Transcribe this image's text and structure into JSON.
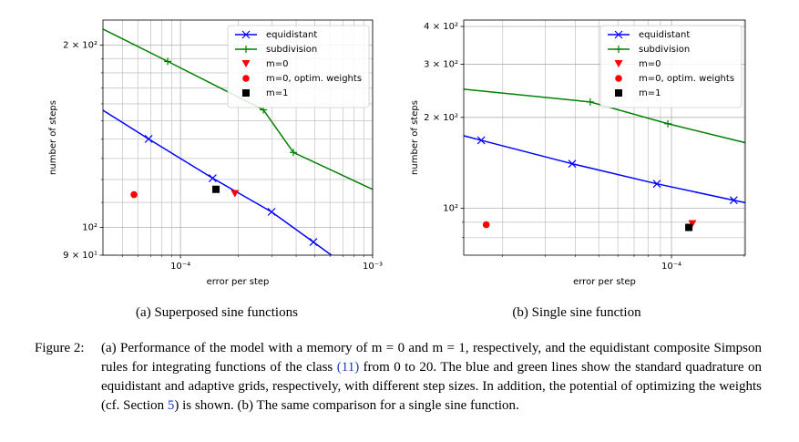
{
  "chart_data": [
    {
      "type": "line",
      "caption": "(a) Superposed sine functions",
      "xlabel": "error per step",
      "ylabel": "number of steps",
      "xscale": "log",
      "yscale": "log",
      "grid": true,
      "legend": "upper right",
      "xlim": [
        3.95e-05,
        0.001
      ],
      "ylim": [
        90,
        220
      ],
      "xticks": [
        {
          "value": 0.0001,
          "label": "10⁻⁴"
        },
        {
          "value": 0.001,
          "label": "10⁻³"
        }
      ],
      "xminor": [
        5e-05,
        6e-05,
        7e-05,
        8e-05,
        9e-05,
        0.0002,
        0.0003,
        0.0004,
        0.0005,
        0.0006,
        0.0007,
        0.0008,
        0.0009
      ],
      "yticks": [
        {
          "value": 90,
          "label": "9 × 10¹"
        },
        {
          "value": 100,
          "label": "10²"
        },
        {
          "value": 200,
          "label": "2 × 10²"
        }
      ],
      "yminor": [
        110,
        120,
        130,
        140,
        150,
        160,
        170,
        180,
        190
      ],
      "series": [
        {
          "name": "equidistant",
          "color": "#0000ff",
          "marker": "x",
          "line": true,
          "x": [
            3.18e-05,
            6.83e-05,
            0.000147,
            0.000298,
            0.000492,
            0.00081
          ],
          "values": [
            163,
            140,
            120.6,
            106.1,
            94.6,
            84.3
          ]
        },
        {
          "name": "subdivision",
          "color": "#008000",
          "marker": "+",
          "line": true,
          "x": [
            2.76e-05,
            8.58e-05,
            0.00027,
            0.000387,
            0.00126
          ],
          "values": [
            225,
            188,
            156.4,
            133,
            111.7
          ]
        },
        {
          "name": "m=0",
          "color": "#ff0000",
          "marker": "v",
          "line": false,
          "x": [
            0.000192
          ],
          "values": [
            113.7
          ]
        },
        {
          "name": "m=0, optim. weights",
          "color": "#ff0000",
          "marker": "o",
          "line": false,
          "x": [
            5.73e-05
          ],
          "values": [
            113.3
          ]
        },
        {
          "name": "m=1",
          "color": "#000000",
          "marker": "s",
          "line": false,
          "x": [
            0.000153
          ],
          "values": [
            115.6
          ]
        }
      ]
    },
    {
      "type": "line",
      "caption": "(b) Single sine function",
      "xlabel": "error per step",
      "ylabel": "number of steps",
      "xscale": "log",
      "yscale": "log",
      "grid": true,
      "legend": "upper right",
      "xlim": [
        1.38e-05,
        0.000202
      ],
      "ylim": [
        70,
        420
      ],
      "xticks": [
        {
          "value": 0.0001,
          "label": "10⁻⁴"
        }
      ],
      "xminor": [
        2e-05,
        3e-05,
        4e-05,
        5e-05,
        6e-05,
        7e-05,
        8e-05,
        9e-05,
        0.0002
      ],
      "yticks": [
        {
          "value": 100,
          "label": "10²"
        },
        {
          "value": 200,
          "label": "2 × 10²"
        },
        {
          "value": 300,
          "label": "3 × 10²"
        },
        {
          "value": 400,
          "label": "4 × 10²"
        }
      ],
      "yminor": [
        80,
        90
      ],
      "series": [
        {
          "name": "equidistant",
          "color": "#0000ff",
          "marker": "x",
          "line": true,
          "x": [
            1.07e-05,
            1.63e-05,
            3.88e-05,
            8.7e-05,
            0.000181,
            0.000347
          ],
          "values": [
            183.5,
            168,
            140.5,
            120.6,
            106.4,
            95.3
          ]
        },
        {
          "name": "subdivision",
          "color": "#008000",
          "marker": "+",
          "line": true,
          "x": [
            9.8e-06,
            4.61e-05,
            9.66e-05,
            0.000412
          ],
          "values": [
            255,
            225,
            190.6,
            143.5
          ]
        },
        {
          "name": "m=0",
          "color": "#ff0000",
          "marker": "v",
          "line": false,
          "x": [
            0.000122
          ],
          "values": [
            88.9
          ]
        },
        {
          "name": "m=0, optim. weights",
          "color": "#ff0000",
          "marker": "o",
          "line": false,
          "x": [
            1.71e-05
          ],
          "values": [
            88.3
          ]
        },
        {
          "name": "m=1",
          "color": "#000000",
          "marker": "s",
          "line": false,
          "x": [
            0.000118
          ],
          "values": [
            86.5
          ]
        }
      ]
    }
  ],
  "figure_caption": {
    "label": "Figure 2:",
    "parts": [
      "(a) Performance of the model with a memory of m = 0 and m = 1, respectively, and the equidistant composite Simpson rules for integrating functions of the class ",
      "(11)",
      " from 0 to 20. The blue and green lines show the standard quadrature on equidistant and adaptive grids, respectively, with different step sizes. In addition, the potential of optimizing the weights (cf. Section ",
      "5",
      ") is shown. (b) The same comparison for a single sine function."
    ]
  }
}
